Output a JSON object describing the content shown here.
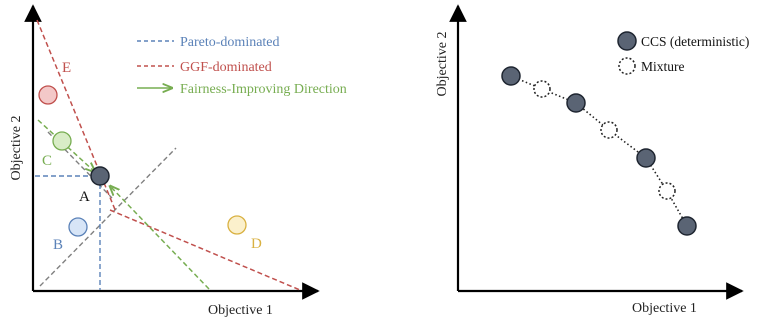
{
  "left_panel": {
    "x_axis_label": "Objective 1",
    "y_axis_label": "Objective 2",
    "legend": [
      {
        "text": "Pareto-dominated",
        "color": "#5b82b8",
        "style": "dashed"
      },
      {
        "text": "GGF-dominated",
        "color": "#c0504d",
        "style": "dashed"
      },
      {
        "text": "Fairness-Improving Direction",
        "color": "#77ad51",
        "style": "arrow"
      }
    ],
    "points": [
      {
        "label": "A",
        "fill": "#5a6474",
        "stroke": "#1e2530"
      },
      {
        "label": "B",
        "fill": "#d7e5f7",
        "stroke": "#5b82b8"
      },
      {
        "label": "C",
        "fill": "#d8ecc6",
        "stroke": "#77ad51"
      },
      {
        "label": "D",
        "fill": "#fbf0cc",
        "stroke": "#d9b142"
      },
      {
        "label": "E",
        "fill": "#f3c8c8",
        "stroke": "#c0504d"
      }
    ],
    "label_colors": {
      "A": "#111111",
      "B": "#5b82b8",
      "C": "#77ad51",
      "D": "#d9b142",
      "E": "#c0504d"
    }
  },
  "right_panel": {
    "x_axis_label": "Objective 1",
    "y_axis_label": "Objective 2",
    "legend": [
      {
        "text": "CCS (deterministic)",
        "style": "filled"
      },
      {
        "text": "Mixture",
        "style": "dotted"
      }
    ],
    "ccs_points": 4,
    "mixture_points": 3
  }
}
